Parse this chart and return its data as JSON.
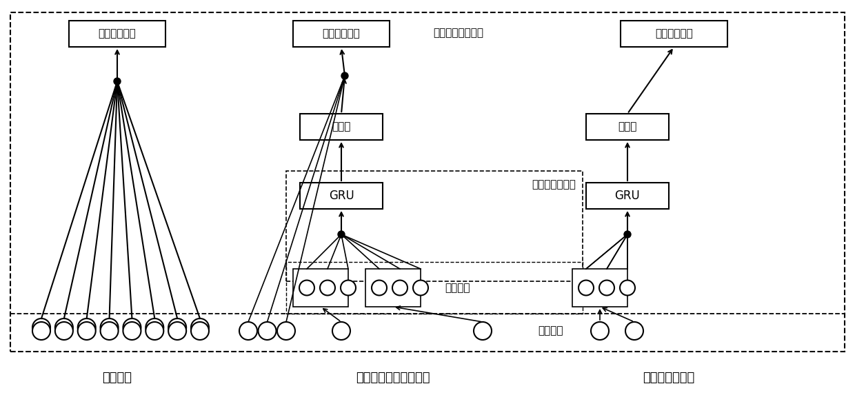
{
  "title": "",
  "bg_color": "#ffffff",
  "linear_label": "线性模型",
  "wide_deep_label": "宽深度门循环联合模型",
  "deep_label": "深度门循环模型",
  "output_label": "输出项目评分",
  "output_layer_label": "输出层：评分列表",
  "feedforward_label": "前馈层",
  "gru_label": "GRU",
  "deep_hidden_label": "深度学习隐藏层",
  "embedding_label": "嵌入向量",
  "sparse_label": "稀疏特征",
  "linear_input_count": 8,
  "wide_sparse_count": 3,
  "wide_embed_group1_count": 3,
  "wide_embed_group2_count": 3,
  "deep_sparse_count": 2,
  "deep_embed_count": 3
}
